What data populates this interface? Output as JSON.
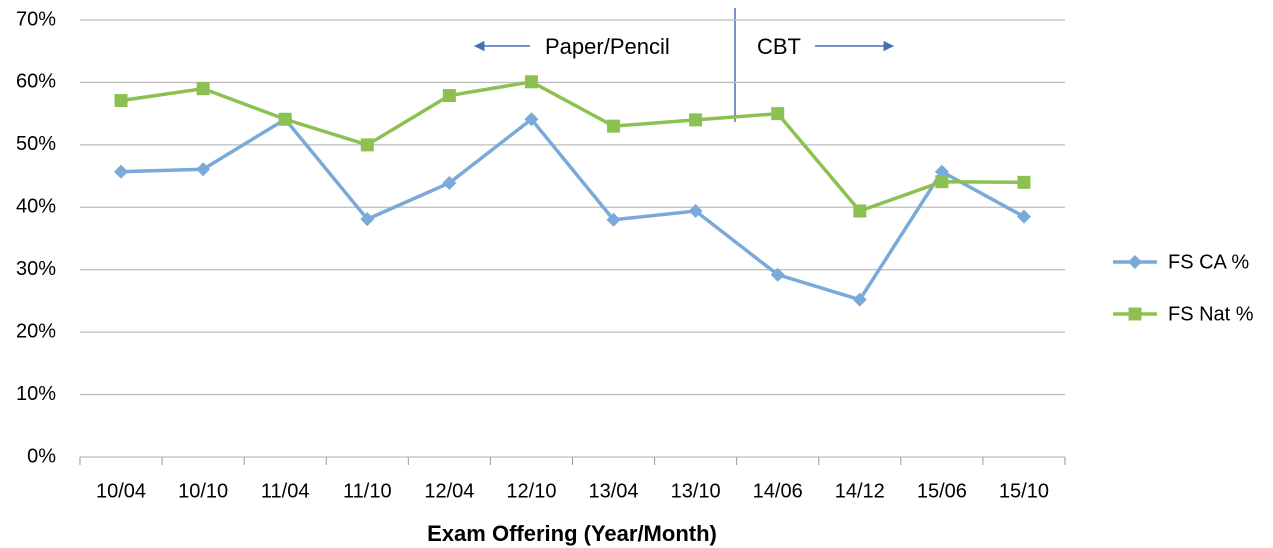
{
  "chart_data": {
    "type": "line",
    "x_label": "Exam Offering (Year/Month)",
    "categories": [
      "10/04",
      "10/10",
      "11/04",
      "11/10",
      "12/04",
      "12/10",
      "13/04",
      "13/10",
      "14/06",
      "14/12",
      "15/06",
      "15/10"
    ],
    "series": [
      {
        "name": "FS CA %",
        "color": "#7aa9da",
        "marker": "diamond",
        "values": [
          45.7,
          46.1,
          54.1,
          38.1,
          43.9,
          54.1,
          38.0,
          39.4,
          29.2,
          25.2,
          45.7,
          38.5
        ]
      },
      {
        "name": "FS Nat %",
        "color": "#8cc152",
        "marker": "square",
        "values": [
          57.1,
          59.0,
          54.1,
          50.0,
          57.9,
          60.1,
          53.0,
          54.0,
          55.0,
          39.4,
          44.1,
          44.0
        ]
      }
    ],
    "ylim": [
      0,
      70
    ],
    "yticks": [
      {
        "value": 0,
        "label": "0%"
      },
      {
        "value": 10,
        "label": "10%"
      },
      {
        "value": 20,
        "label": "20%"
      },
      {
        "value": 30,
        "label": "30%"
      },
      {
        "value": 40,
        "label": "40%"
      },
      {
        "value": 50,
        "label": "50%"
      },
      {
        "value": 60,
        "label": "60%"
      },
      {
        "value": 70,
        "label": "70%"
      }
    ],
    "grid": true,
    "legend": "right",
    "annotations": [
      {
        "text": "Paper/Pencil"
      },
      {
        "text": "CBT"
      }
    ]
  }
}
